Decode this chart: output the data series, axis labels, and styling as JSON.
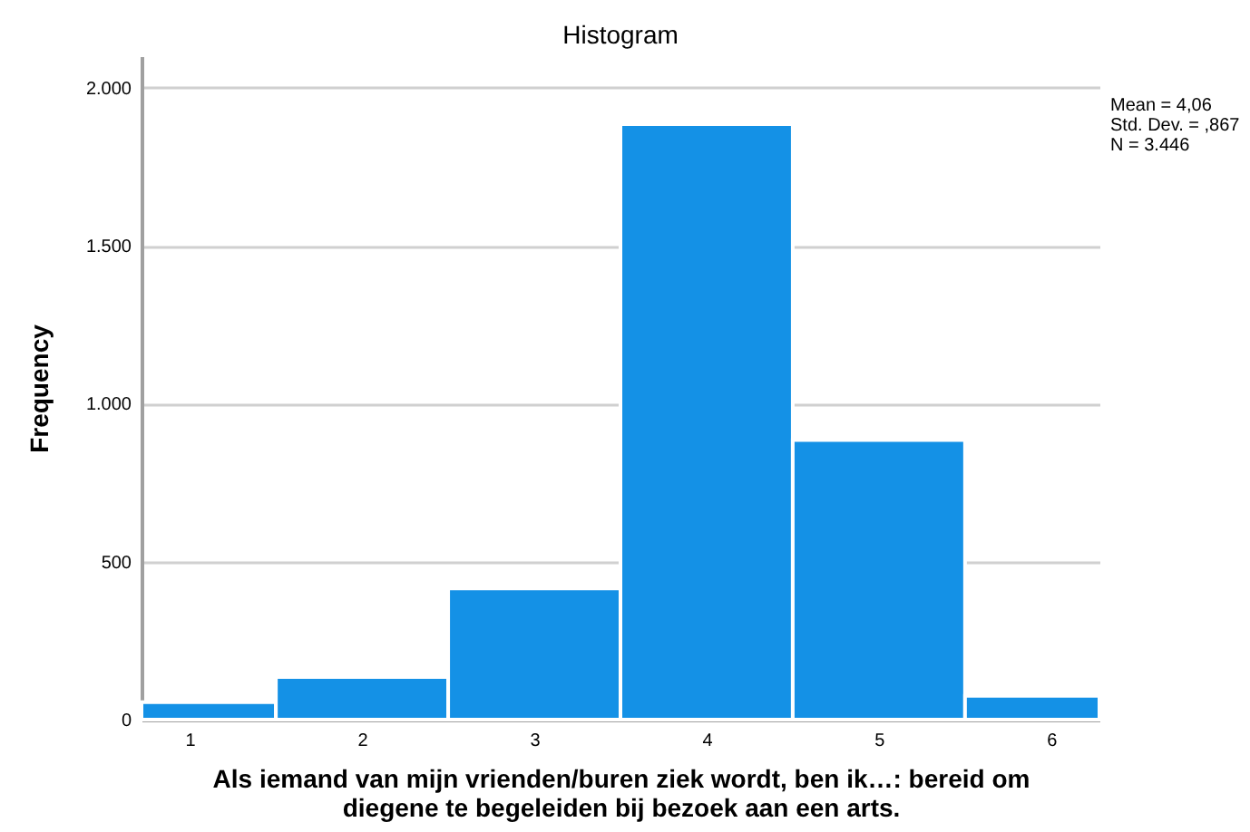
{
  "chart_data": {
    "type": "histogram",
    "title": "Histogram",
    "xlabel": "Als iemand van mijn vrienden/buren ziek wordt, ben ik…: bereid om diegene te begeleiden bij bezoek aan een arts.",
    "ylabel": "Frequency",
    "bins": [
      0.72,
      1.5,
      2.5,
      3.5,
      4.5,
      5.5,
      6.28
    ],
    "values": [
      55,
      135,
      415,
      1885,
      885,
      75
    ],
    "color": "#1491e6",
    "xlim": [
      0.72,
      6.28
    ],
    "xticks": [
      1,
      2,
      3,
      4,
      5,
      6
    ],
    "ylim": [
      0,
      2100
    ],
    "yticks": [
      0,
      500,
      {
        "value": 1000,
        "label": "1.000"
      },
      {
        "value": 1500,
        "label": "1.500"
      },
      {
        "value": 2000,
        "label": "2.000"
      }
    ],
    "grid": "y",
    "annotations": [
      "Mean = 4,06",
      "Std. Dev. = ,867",
      "N = 3.446"
    ]
  }
}
